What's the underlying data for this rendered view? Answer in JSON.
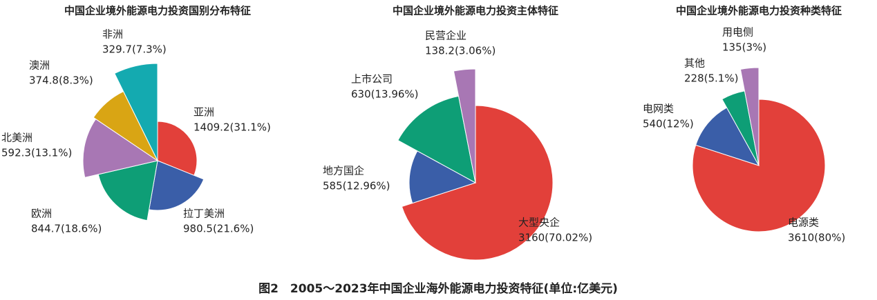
{
  "chart_data": [
    {
      "type": "pie",
      "title": "中国企业境外能源电力投资国别分布特征",
      "categories": [
        "亚洲",
        "拉丁美洲",
        "欧洲",
        "北美洲",
        "澳洲",
        "非洲"
      ],
      "values": [
        1409.2,
        980.5,
        844.7,
        592.3,
        374.8,
        329.7
      ],
      "value_labels": [
        "1409.2(31.1%)",
        "980.5(21.6%)",
        "844.7(18.6%)",
        "592.3(13.1%)",
        "374.8(8.3%)",
        "329.7(7.3%)"
      ],
      "colors": [
        "#e2403a",
        "#3a5ea8",
        "#0e9e76",
        "#a877b4",
        "#d9a514",
        "#14aab0"
      ]
    },
    {
      "type": "pie",
      "title": "中国企业境外能源电力投资主体特征",
      "categories": [
        "大型央企",
        "地方国企",
        "上市公司",
        "民营企业"
      ],
      "values": [
        3160,
        585,
        630,
        138.2
      ],
      "value_labels": [
        "3160(70.02%)",
        "585(12.96%)",
        "630(13.96%)",
        "138.2(3.06%)"
      ],
      "colors": [
        "#e2403a",
        "#3a5ea8",
        "#0e9e76",
        "#a877b4"
      ]
    },
    {
      "type": "pie",
      "title": "中国企业境外能源电力投资种类特征",
      "categories": [
        "电源类",
        "电网类",
        "其他",
        "用电侧"
      ],
      "values": [
        3610,
        540,
        228,
        135
      ],
      "value_labels": [
        "3610(80%)",
        "540(12%)",
        "228(5.1%)",
        "135(3%)"
      ],
      "colors": [
        "#e2403a",
        "#3a5ea8",
        "#0e9e76",
        "#a877b4"
      ]
    }
  ],
  "caption": "图2　2005～2023年中国企业海外能源电力投资特征(单位:亿美元)"
}
